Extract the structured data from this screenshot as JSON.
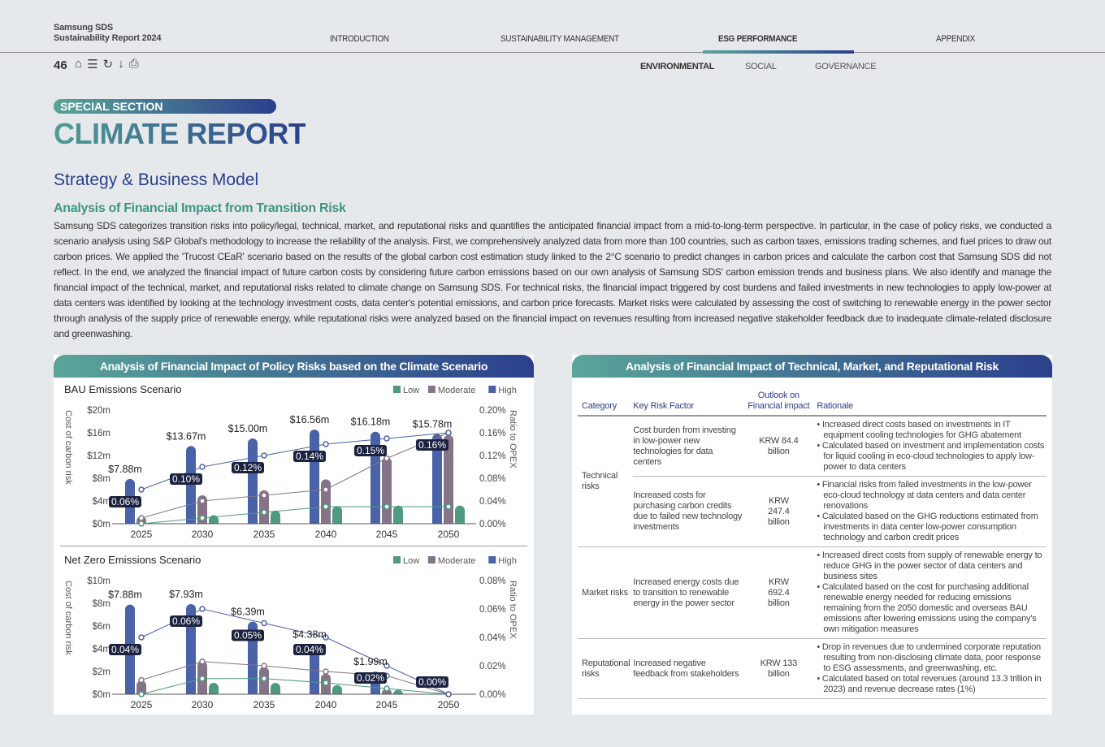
{
  "header": {
    "brand_line1": "Samsung SDS",
    "brand_line2": "Sustainability Report 2024",
    "nav": [
      "INTRODUCTION",
      "SUSTAINABILITY MANAGEMENT",
      "ESG PERFORMANCE",
      "APPENDIX"
    ],
    "active_nav": "ESG PERFORMANCE",
    "page_number": "46",
    "subnav": [
      "ENVIRONMENTAL",
      "SOCIAL",
      "GOVERNANCE"
    ],
    "active_subnav": "ENVIRONMENTAL",
    "tool_icons": [
      "home-icon",
      "menu-icon",
      "refresh-icon",
      "download-icon",
      "print-icon"
    ]
  },
  "section": {
    "badge": "SPECIAL SECTION",
    "title": "CLIMATE REPORT",
    "heading": "Strategy & Business Model",
    "subheading": "Analysis of Financial Impact from Transition Risk",
    "body": "Samsung SDS categorizes transition risks into policy/legal, technical, market, and reputational risks and quantifies the anticipated financial impact from a mid-to-long-term perspective. In particular, in the case of policy risks, we conducted a scenario analysis using S&P Global's methodology to increase the reliability of the analysis. First, we comprehensively analyzed data from more than 100 countries, such as carbon taxes, emissions trading schemes, and fuel prices to draw out carbon prices. We applied the 'Trucost CEaR' scenario based on the results of the global carbon cost estimation study linked to the 2°C scenario to predict changes in carbon prices and calculate the carbon cost that Samsung SDS did not reflect. In the end, we analyzed the financial impact of future carbon costs by considering future carbon emissions based on our own analysis of Samsung SDS' carbon emission trends and business plans. We also identify and manage the financial impact of the technical, market, and reputational risks related to climate change on Samsung SDS. For technical risks, the financial impact triggered by cost burdens and failed investments in new technologies to apply low-power at data centers was identified by looking at the technology investment costs, data center's potential emissions, and carbon price forecasts. Market risks were calculated by assessing the cost of switching to renewable energy in the power sector through analysis of the supply price of renewable energy, while reputational risks were analyzed based on the financial impact on revenues resulting from increased negative stakeholder feedback due to inadequate climate-related disclosure and greenwashing."
  },
  "colors": {
    "low": "#4f9a80",
    "moderate": "#857388",
    "high": "#4a63a8",
    "label_bg": "#1c2340",
    "accent": "#2b3f8c",
    "teal": "#5aa59a"
  },
  "left_panel_title": "Analysis of Financial Impact of Policy Risks based on the Climate Scenario",
  "chart_data": [
    {
      "type": "bar",
      "title": "BAU Emissions Scenario",
      "categories": [
        "2025",
        "2030",
        "2035",
        "2040",
        "2045",
        "2050"
      ],
      "ylabel": "Cost of carbon risk",
      "y2label": "Ratio to OPEX",
      "ylim": [
        0,
        20
      ],
      "yticks": [
        "$0m",
        "$4m",
        "$8m",
        "$12m",
        "$16m",
        "$20m"
      ],
      "y2lim": [
        0,
        0.2
      ],
      "y2ticks": [
        "0.00%",
        "0.04%",
        "0.08%",
        "0.12%",
        "0.16%",
        "0.20%"
      ],
      "legend": [
        "Low",
        "Moderate",
        "High"
      ],
      "legend_position": "top-right",
      "series": [
        {
          "name": "Low",
          "values": [
            0,
            1.5,
            2.3,
            3.1,
            3.2,
            3.2
          ],
          "ratio": [
            0,
            0.01,
            0.02,
            0.03,
            0.03,
            0.03
          ]
        },
        {
          "name": "Moderate",
          "values": [
            1.3,
            5.0,
            5.9,
            7.8,
            11.7,
            15.6
          ],
          "ratio": [
            0.01,
            0.04,
            0.05,
            0.06,
            0.115,
            0.16
          ]
        },
        {
          "name": "High",
          "values": [
            7.88,
            13.67,
            15.0,
            16.56,
            16.18,
            15.78
          ],
          "ratio": [
            0.06,
            0.1,
            0.12,
            0.14,
            0.15,
            0.16
          ]
        }
      ],
      "value_labels": [
        "$7.88m",
        "$13.67m",
        "$15.00m",
        "$16.56m",
        "$16.18m",
        "$15.78m"
      ],
      "ratio_labels": [
        "0.06%",
        "0.10%",
        "0.12%",
        "0.14%",
        "0.15%",
        "0.16%"
      ]
    },
    {
      "type": "bar",
      "title": "Net Zero Emissions Scenario",
      "categories": [
        "2025",
        "2030",
        "2035",
        "2040",
        "2045",
        "2050"
      ],
      "ylabel": "Cost of carbon risk",
      "y2label": "Ratio to OPEX",
      "ylim": [
        0,
        10
      ],
      "yticks": [
        "$0m",
        "$2m",
        "$4m",
        "$6m",
        "$8m",
        "$10m"
      ],
      "y2lim": [
        0,
        0.08
      ],
      "y2ticks": [
        "0.00%",
        "0.02%",
        "0.04%",
        "0.06%",
        "0.08%"
      ],
      "legend": [
        "Low",
        "Moderate",
        "High"
      ],
      "legend_position": "top-right",
      "series": [
        {
          "name": "Low",
          "values": [
            0,
            1.0,
            1.0,
            0.8,
            0.4,
            0
          ],
          "ratio": [
            0,
            0.011,
            0.011,
            0.008,
            0.004,
            0
          ]
        },
        {
          "name": "Moderate",
          "values": [
            1.2,
            2.9,
            2.4,
            1.8,
            0.5,
            0
          ],
          "ratio": [
            0.01,
            0.023,
            0.02,
            0.016,
            0.013,
            0
          ]
        },
        {
          "name": "High",
          "values": [
            7.88,
            7.93,
            6.39,
            4.38,
            1.99,
            0
          ],
          "ratio": [
            0.04,
            0.06,
            0.05,
            0.04,
            0.02,
            0
          ]
        }
      ],
      "value_labels": [
        "$7.88m",
        "$7.93m",
        "$6.39m",
        "$4.38m",
        "$1.99m",
        ""
      ],
      "ratio_labels": [
        "0.04%",
        "0.06%",
        "0.05%",
        "0.04%",
        "0.02%",
        "0.00%"
      ]
    }
  ],
  "right_panel": {
    "title": "Analysis of Financial Impact of Technical, Market, and Reputational Risk",
    "headers": [
      "Category",
      "Key Risk Factor",
      "Outlook on Financial impact",
      "Rationale"
    ],
    "rows": [
      {
        "category": "Technical risks",
        "factor": "Cost burden from investing in low-power new technologies for data centers",
        "impact": "KRW 84.4 billion",
        "rationale": [
          "Increased direct costs based on investments in IT equipment cooling technologies for GHG abatement",
          "Calculated based on investment and implementation costs for liquid cooling in eco-cloud technologies to apply low-power to data centers"
        ]
      },
      {
        "category": "",
        "factor": "Increased costs for purchasing carbon credits due to failed new technology investments",
        "impact": "KRW 247.4 billion",
        "rationale": [
          "Financial risks from failed investments in the low-power eco-cloud technology at data centers and data center renovations",
          "Calculated based on the GHG reductions estimated from investments in data center low-power consumption technology and carbon credit prices"
        ]
      },
      {
        "category": "Market risks",
        "factor": "Increased energy costs due to transition to renewable energy in the power sector",
        "impact": "KRW 692.4 billion",
        "rationale": [
          "Increased direct costs from supply of renewable energy to reduce GHG in the power sector of data centers and business sites",
          "Calculated based on the cost for purchasing additional renewable energy needed for reducing emissions remaining from the 2050 domestic and overseas BAU emissions after lowering emissions using the company's own mitigation measures"
        ]
      },
      {
        "category": "Reputational risks",
        "factor": "Increased negative feedback from stakeholders",
        "impact": "KRW 133 billion",
        "rationale": [
          "Drop in revenues due to undermined corporate reputation resulting from non-disclosing climate data, poor response to ESG assessments, and greenwashing, etc.",
          "Calculated based on total revenues (around 13.3 trillion in 2023) and revenue decrease rates (1%)"
        ]
      }
    ]
  }
}
